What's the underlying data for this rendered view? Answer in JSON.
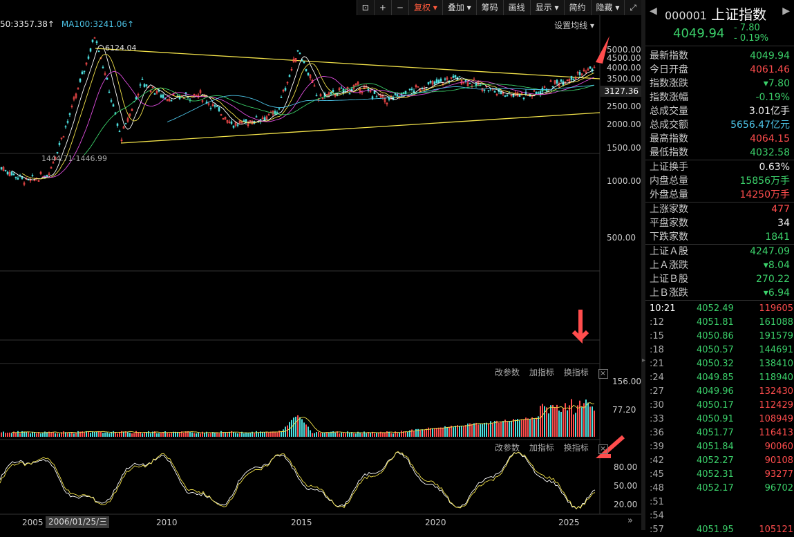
{
  "toolbar": {
    "items": [
      "复权 ▾",
      "叠加 ▾",
      "筹码",
      "画线",
      "显示 ▾",
      "简约",
      "隐藏 ▾"
    ],
    "icons": [
      "lock-icon",
      "plus-icon",
      "minus-icon",
      "fullscreen-icon"
    ]
  },
  "ma_legend": {
    "ma50": "50:3357.38↑",
    "ma100": "MA100:3241.06↑"
  },
  "set_ma_label": "设置均线 ▾",
  "annotations": {
    "high": "6124.04",
    "low": "1444.71-1446.99"
  },
  "price_axis": [
    "5000.00",
    "4500.00",
    "4000.00",
    "3500.00",
    "3000.00",
    "2500.00",
    "2000.00",
    "1500.00",
    "1000.00",
    "500.00"
  ],
  "price_box": "3127.36",
  "vol_panel": {
    "buttons": [
      "改参数",
      "加指标",
      "换指标"
    ],
    "ticks": [
      "156.00",
      "77.20"
    ]
  },
  "osc_panel": {
    "buttons": [
      "改参数",
      "加指标",
      "换指标"
    ],
    "ticks": [
      "80.00",
      "50.00",
      "20.00"
    ]
  },
  "x_axis": [
    "2005",
    "2010",
    "2015",
    "2020",
    "2025"
  ],
  "date_box": "2006/01/25/三",
  "side": {
    "code": "000001",
    "name": "上证指数",
    "price": "4049.94",
    "change": "- 7.80",
    "pct": "- 0.19%",
    "stats": [
      {
        "label": "最新指数",
        "value": "4049.94",
        "cls": "green"
      },
      {
        "label": "今日开盘",
        "value": "4061.46",
        "cls": "red"
      },
      {
        "label": "指数涨跌",
        "value": "▾7.80",
        "cls": "green"
      },
      {
        "label": "指数涨幅",
        "value": "-0.19%",
        "cls": "green"
      },
      {
        "label": "总成交量",
        "value": "3.01亿手",
        "cls": "white"
      },
      {
        "label": "总成交额",
        "value": "5656.47亿元",
        "cls": "cyan"
      },
      {
        "label": "最高指数",
        "value": "4064.15",
        "cls": "red"
      },
      {
        "label": "最低指数",
        "value": "4032.58",
        "cls": "green"
      }
    ],
    "stats2": [
      {
        "label": "上证换手",
        "value": "0.63%",
        "cls": "white"
      },
      {
        "label": "内盘总量",
        "value": "15856万手",
        "cls": "green"
      },
      {
        "label": "外盘总量",
        "value": "14250万手",
        "cls": "red"
      }
    ],
    "stats3": [
      {
        "label": "上涨家数",
        "value": "477",
        "cls": "red"
      },
      {
        "label": "平盘家数",
        "value": "34",
        "cls": "white"
      },
      {
        "label": "下跌家数",
        "value": "1841",
        "cls": "green"
      }
    ],
    "stats4": [
      {
        "label": "上证Ａ股",
        "value": "4247.09",
        "cls": "green"
      },
      {
        "label": "上Ａ涨跌",
        "value": "▾8.04",
        "cls": "green"
      },
      {
        "label": "上证Ｂ股",
        "value": "270.22",
        "cls": "green"
      },
      {
        "label": "上Ｂ涨跌",
        "value": "▾6.94",
        "cls": "green"
      }
    ],
    "ticks": [
      {
        "t": "10:21",
        "p": "4052.49",
        "v": "119605",
        "c": "red"
      },
      {
        "t": ":12",
        "p": "4051.81",
        "v": "161088",
        "c": "green"
      },
      {
        "t": ":15",
        "p": "4050.86",
        "v": "191579",
        "c": "green"
      },
      {
        "t": ":18",
        "p": "4050.57",
        "v": "144691",
        "c": "green"
      },
      {
        "t": ":21",
        "p": "4050.32",
        "v": "138410",
        "c": "green"
      },
      {
        "t": ":24",
        "p": "4049.85",
        "v": "118940",
        "c": "green"
      },
      {
        "t": ":27",
        "p": "4049.96",
        "v": "132430",
        "c": "red"
      },
      {
        "t": ":30",
        "p": "4050.17",
        "v": "112429",
        "c": "red"
      },
      {
        "t": ":33",
        "p": "4050.91",
        "v": "108949",
        "c": "red"
      },
      {
        "t": ":36",
        "p": "4051.77",
        "v": "116413",
        "c": "red"
      },
      {
        "t": ":39",
        "p": "4051.84",
        "v": "90060",
        "c": "red"
      },
      {
        "t": ":42",
        "p": "4052.27",
        "v": "90108",
        "c": "red"
      },
      {
        "t": ":45",
        "p": "4052.31",
        "v": "93277",
        "c": "red"
      },
      {
        "t": ":48",
        "p": "4052.17",
        "v": "96702",
        "c": "green"
      },
      {
        "t": ":51",
        "p": "",
        "v": "",
        "c": "green"
      },
      {
        "t": ":54",
        "p": "",
        "v": "",
        "c": "green"
      },
      {
        "t": ":57",
        "p": "4051.95",
        "v": "105121",
        "c": "red"
      }
    ]
  }
}
